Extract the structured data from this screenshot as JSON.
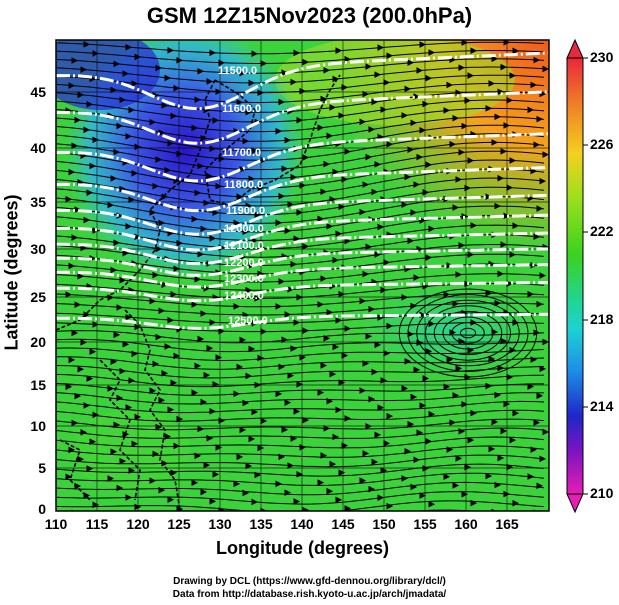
{
  "title": "GSM 12Z15Nov2023 (200.0hPa)",
  "axes": {
    "xlabel": "Longitude (degrees)",
    "ylabel": "Latitude  (degrees)",
    "xticks": [
      "110",
      "115",
      "120",
      "125",
      "130",
      "135",
      "140",
      "145",
      "150",
      "155",
      "160",
      "165"
    ],
    "yticks": [
      "45",
      "40",
      "35",
      "30",
      "25",
      "20",
      "15",
      "10",
      "5",
      "0"
    ]
  },
  "colorbar": {
    "ticks": [
      "230",
      "226",
      "222",
      "218",
      "214",
      "210"
    ]
  },
  "contours": [
    "11500.0",
    "11600.0",
    "11700.0",
    "11800.0",
    "11900.0",
    "12000.0",
    "12100.0",
    "12200.0",
    "12300.0",
    "12400.0",
    "12500.0"
  ],
  "credits": {
    "line1": "Drawing by DCL (https://www.gfd-dennou.org/library/dcl/)",
    "line2": "Data from http://database.rish.kyoto-u.ac.jp/arch/jmadata/"
  }
}
